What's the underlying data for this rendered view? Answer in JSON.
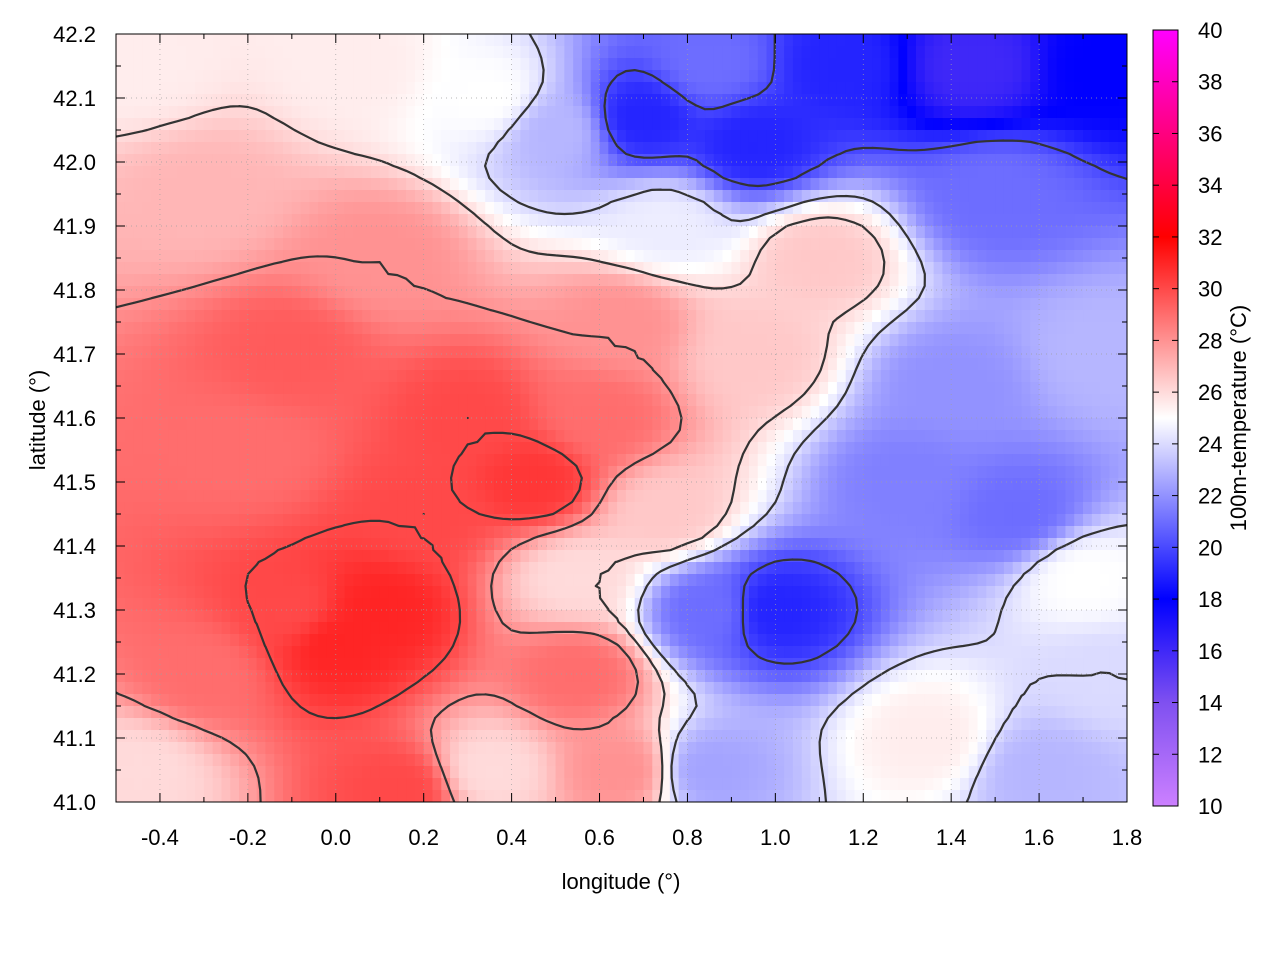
{
  "chart_data": {
    "type": "heatmap",
    "title": "",
    "xlabel": "longitude (°)",
    "ylabel": "latitude (°)",
    "colorbar_label": "100m-temperature (°C)",
    "xlim": [
      -0.5,
      1.8
    ],
    "ylim": [
      41.0,
      42.2
    ],
    "clim": [
      10,
      40
    ],
    "x_ticks": [
      {
        "value": -0.4,
        "label": "-0.4"
      },
      {
        "value": -0.2,
        "label": "-0.2"
      },
      {
        "value": 0.0,
        "label": "0.0"
      },
      {
        "value": 0.2,
        "label": "0.2"
      },
      {
        "value": 0.4,
        "label": "0.4"
      },
      {
        "value": 0.6,
        "label": "0.6"
      },
      {
        "value": 0.8,
        "label": "0.8"
      },
      {
        "value": 1.0,
        "label": "1.0"
      },
      {
        "value": 1.2,
        "label": "1.2"
      },
      {
        "value": 1.4,
        "label": "1.4"
      },
      {
        "value": 1.6,
        "label": "1.6"
      },
      {
        "value": 1.8,
        "label": "1.8"
      }
    ],
    "y_ticks": [
      {
        "value": 41.0,
        "label": "41.0"
      },
      {
        "value": 41.1,
        "label": "41.1"
      },
      {
        "value": 41.2,
        "label": "41.2"
      },
      {
        "value": 41.3,
        "label": "41.3"
      },
      {
        "value": 41.4,
        "label": "41.4"
      },
      {
        "value": 41.5,
        "label": "41.5"
      },
      {
        "value": 41.6,
        "label": "41.6"
      },
      {
        "value": 41.7,
        "label": "41.7"
      },
      {
        "value": 41.8,
        "label": "41.8"
      },
      {
        "value": 41.9,
        "label": "41.9"
      },
      {
        "value": 42.0,
        "label": "42.0"
      },
      {
        "value": 42.1,
        "label": "42.1"
      },
      {
        "value": 42.2,
        "label": "42.2"
      }
    ],
    "colorbar_ticks": [
      {
        "value": 10,
        "label": "10"
      },
      {
        "value": 12,
        "label": "12"
      },
      {
        "value": 14,
        "label": "14"
      },
      {
        "value": 16,
        "label": "16"
      },
      {
        "value": 18,
        "label": "18"
      },
      {
        "value": 20,
        "label": "20"
      },
      {
        "value": 22,
        "label": "22"
      },
      {
        "value": 24,
        "label": "24"
      },
      {
        "value": 26,
        "label": "26"
      },
      {
        "value": 28,
        "label": "28"
      },
      {
        "value": 30,
        "label": "30"
      },
      {
        "value": 32,
        "label": "32"
      },
      {
        "value": 34,
        "label": "34"
      },
      {
        "value": 36,
        "label": "36"
      },
      {
        "value": 38,
        "label": "38"
      },
      {
        "value": 40,
        "label": "40"
      }
    ],
    "colormap": [
      {
        "value": 10,
        "color": "#cc80ff"
      },
      {
        "value": 14,
        "color": "#7f50f0"
      },
      {
        "value": 18,
        "color": "#0000ff"
      },
      {
        "value": 25,
        "color": "#ffffff"
      },
      {
        "value": 32,
        "color": "#ff0000"
      },
      {
        "value": 40,
        "color": "#ff00ff"
      }
    ],
    "grid": true,
    "contour_color": "#333333",
    "field_samples": [
      {
        "lon": -0.45,
        "lat": 41.05,
        "temp": 26
      },
      {
        "lon": -0.3,
        "lat": 41.2,
        "temp": 29
      },
      {
        "lon": -0.1,
        "lat": 41.3,
        "temp": 30
      },
      {
        "lon": 0.0,
        "lat": 41.25,
        "temp": 31
      },
      {
        "lon": 0.1,
        "lat": 41.3,
        "temp": 31
      },
      {
        "lon": 0.2,
        "lat": 41.45,
        "temp": 30
      },
      {
        "lon": -0.2,
        "lat": 41.55,
        "temp": 29
      },
      {
        "lon": -0.1,
        "lat": 41.7,
        "temp": 29.5
      },
      {
        "lon": 0.3,
        "lat": 41.6,
        "temp": 30
      },
      {
        "lon": 0.45,
        "lat": 41.5,
        "temp": 30.5
      },
      {
        "lon": 0.6,
        "lat": 41.6,
        "temp": 29
      },
      {
        "lon": 0.65,
        "lat": 41.75,
        "temp": 28
      },
      {
        "lon": 0.1,
        "lat": 41.85,
        "temp": 28
      },
      {
        "lon": -0.3,
        "lat": 41.95,
        "temp": 27
      },
      {
        "lon": -0.45,
        "lat": 42.15,
        "temp": 25.5
      },
      {
        "lon": 0.05,
        "lat": 42.15,
        "temp": 25.5
      },
      {
        "lon": 0.35,
        "lat": 42.1,
        "temp": 25
      },
      {
        "lon": 0.5,
        "lat": 42.05,
        "temp": 23
      },
      {
        "lon": 0.7,
        "lat": 42.07,
        "temp": 19
      },
      {
        "lon": 0.95,
        "lat": 42.03,
        "temp": 19
      },
      {
        "lon": 0.85,
        "lat": 42.15,
        "temp": 21
      },
      {
        "lon": 1.15,
        "lat": 42.15,
        "temp": 19
      },
      {
        "lon": 1.45,
        "lat": 42.15,
        "temp": 16
      },
      {
        "lon": 1.75,
        "lat": 42.15,
        "temp": 18
      },
      {
        "lon": 1.5,
        "lat": 41.95,
        "temp": 21
      },
      {
        "lon": 1.4,
        "lat": 41.65,
        "temp": 22
      },
      {
        "lon": 1.3,
        "lat": 41.5,
        "temp": 21.5
      },
      {
        "lon": 1.55,
        "lat": 41.45,
        "temp": 21
      },
      {
        "lon": 1.75,
        "lat": 41.7,
        "temp": 23
      },
      {
        "lon": 1.1,
        "lat": 41.85,
        "temp": 26.5
      },
      {
        "lon": 0.95,
        "lat": 41.7,
        "temp": 26.5
      },
      {
        "lon": 1.0,
        "lat": 41.3,
        "temp": 19
      },
      {
        "lon": 0.85,
        "lat": 41.3,
        "temp": 21
      },
      {
        "lon": 0.85,
        "lat": 41.05,
        "temp": 22.5
      },
      {
        "lon": 1.35,
        "lat": 41.1,
        "temp": 25.5
      },
      {
        "lon": 1.6,
        "lat": 41.05,
        "temp": 23
      },
      {
        "lon": 1.75,
        "lat": 41.2,
        "temp": 24
      },
      {
        "lon": 1.7,
        "lat": 41.35,
        "temp": 25
      },
      {
        "lon": 0.55,
        "lat": 41.2,
        "temp": 29
      },
      {
        "lon": 0.35,
        "lat": 41.05,
        "temp": 26
      },
      {
        "lon": 0.15,
        "lat": 41.02,
        "temp": 30
      },
      {
        "lon": 0.65,
        "lat": 41.05,
        "temp": 28
      },
      {
        "lon": 0.55,
        "lat": 41.35,
        "temp": 26
      },
      {
        "lon": 0.75,
        "lat": 41.45,
        "temp": 26.5
      },
      {
        "lon": 0.75,
        "lat": 41.9,
        "temp": 24.5
      }
    ]
  }
}
